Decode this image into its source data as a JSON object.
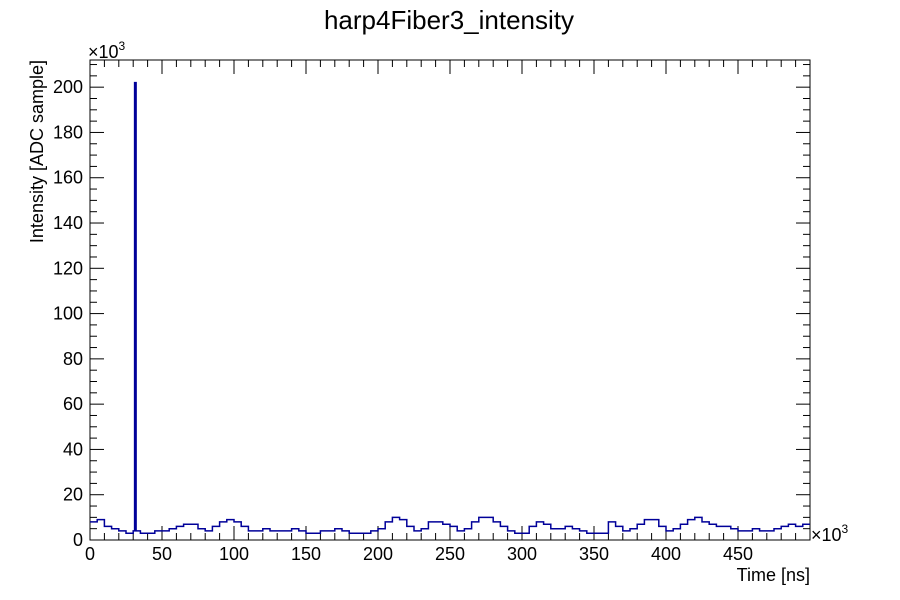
{
  "chart_data": {
    "type": "line",
    "title": "harp4Fiber3_intensity",
    "xlabel": "Time [ns]",
    "ylabel": "Intensity [ADC sample]",
    "x_multiplier": "×10",
    "x_multiplier_exp": "3",
    "y_multiplier": "×10",
    "y_multiplier_exp": "3",
    "xlim": [
      0,
      500
    ],
    "ylim": [
      0,
      212
    ],
    "x_ticks": [
      0,
      50,
      100,
      150,
      200,
      250,
      300,
      350,
      400,
      450
    ],
    "x_tick_labels": [
      "0",
      "50",
      "100",
      "150",
      "200",
      "250",
      "300",
      "350",
      "400",
      "450"
    ],
    "y_ticks": [
      0,
      20,
      40,
      60,
      80,
      100,
      120,
      140,
      160,
      180,
      200
    ],
    "y_tick_labels": [
      "0",
      "20",
      "40",
      "60",
      "80",
      "100",
      "120",
      "140",
      "160",
      "180",
      "200"
    ],
    "grid": false,
    "series": [
      {
        "color": "#000099",
        "x": [
          0,
          5,
          10,
          15,
          20,
          25,
          30,
          31,
          32,
          35,
          40,
          45,
          50,
          55,
          60,
          65,
          70,
          75,
          80,
          85,
          90,
          95,
          100,
          105,
          110,
          115,
          120,
          125,
          130,
          135,
          140,
          145,
          150,
          155,
          160,
          165,
          170,
          175,
          180,
          185,
          190,
          195,
          200,
          205,
          210,
          215,
          220,
          225,
          230,
          235,
          240,
          245,
          250,
          255,
          260,
          265,
          270,
          275,
          280,
          285,
          290,
          295,
          300,
          305,
          310,
          315,
          320,
          325,
          330,
          335,
          340,
          345,
          350,
          355,
          360,
          365,
          370,
          375,
          380,
          385,
          390,
          395,
          400,
          405,
          410,
          415,
          420,
          425,
          430,
          435,
          440,
          445,
          450,
          455,
          460,
          465,
          470,
          475,
          480,
          485,
          490,
          495,
          500
        ],
        "values": [
          8,
          9,
          6,
          5,
          4,
          3,
          4,
          202,
          4,
          3,
          3,
          4,
          4,
          5,
          6,
          7,
          7,
          5,
          4,
          6,
          8,
          9,
          8,
          6,
          4,
          4,
          5,
          4,
          4,
          4,
          5,
          4,
          3,
          3,
          4,
          4,
          5,
          4,
          3,
          3,
          3,
          4,
          5,
          8,
          10,
          9,
          6,
          4,
          5,
          8,
          8,
          7,
          6,
          4,
          5,
          8,
          10,
          10,
          8,
          6,
          4,
          3,
          3,
          6,
          8,
          7,
          5,
          5,
          6,
          5,
          4,
          3,
          3,
          3,
          8,
          6,
          4,
          5,
          7,
          9,
          9,
          6,
          4,
          5,
          7,
          9,
          10,
          8,
          7,
          6,
          6,
          5,
          4,
          4,
          5,
          4,
          4,
          5,
          6,
          7,
          6,
          7,
          7
        ]
      }
    ]
  }
}
